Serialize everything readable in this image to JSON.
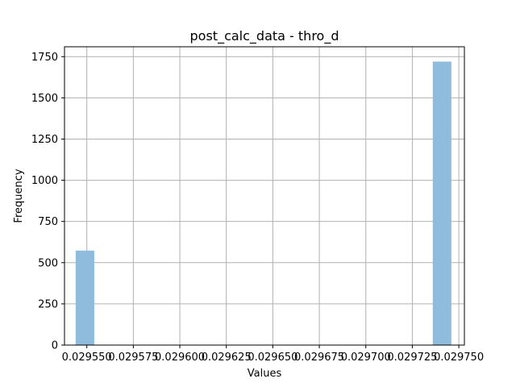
{
  "chart_data": {
    "type": "bar",
    "title": "post_calc_data - thro_d",
    "xlabel": "Values",
    "ylabel": "Frequency",
    "xlim": [
      0.029538,
      0.029753
    ],
    "ylim": [
      0,
      1810
    ],
    "xticks": [
      0.02955,
      0.029575,
      0.0296,
      0.029625,
      0.02965,
      0.029675,
      0.0297,
      0.029725,
      0.02975
    ],
    "xtick_labels": [
      "0.029550",
      "0.029575",
      "0.029600",
      "0.029625",
      "0.029650",
      "0.029675",
      "0.029700",
      "0.029725",
      "0.029750"
    ],
    "yticks": [
      0,
      250,
      500,
      750,
      1000,
      1250,
      1500,
      1750
    ],
    "ytick_labels": [
      "0",
      "250",
      "500",
      "750",
      "1000",
      "1250",
      "1500",
      "1750"
    ],
    "grid": true,
    "bar_color": "#8fbcdc",
    "bins": [
      {
        "x0": 0.029544,
        "x1": 0.029554,
        "value": 573
      },
      {
        "x0": 0.029736,
        "x1": 0.029746,
        "value": 1720
      }
    ]
  }
}
